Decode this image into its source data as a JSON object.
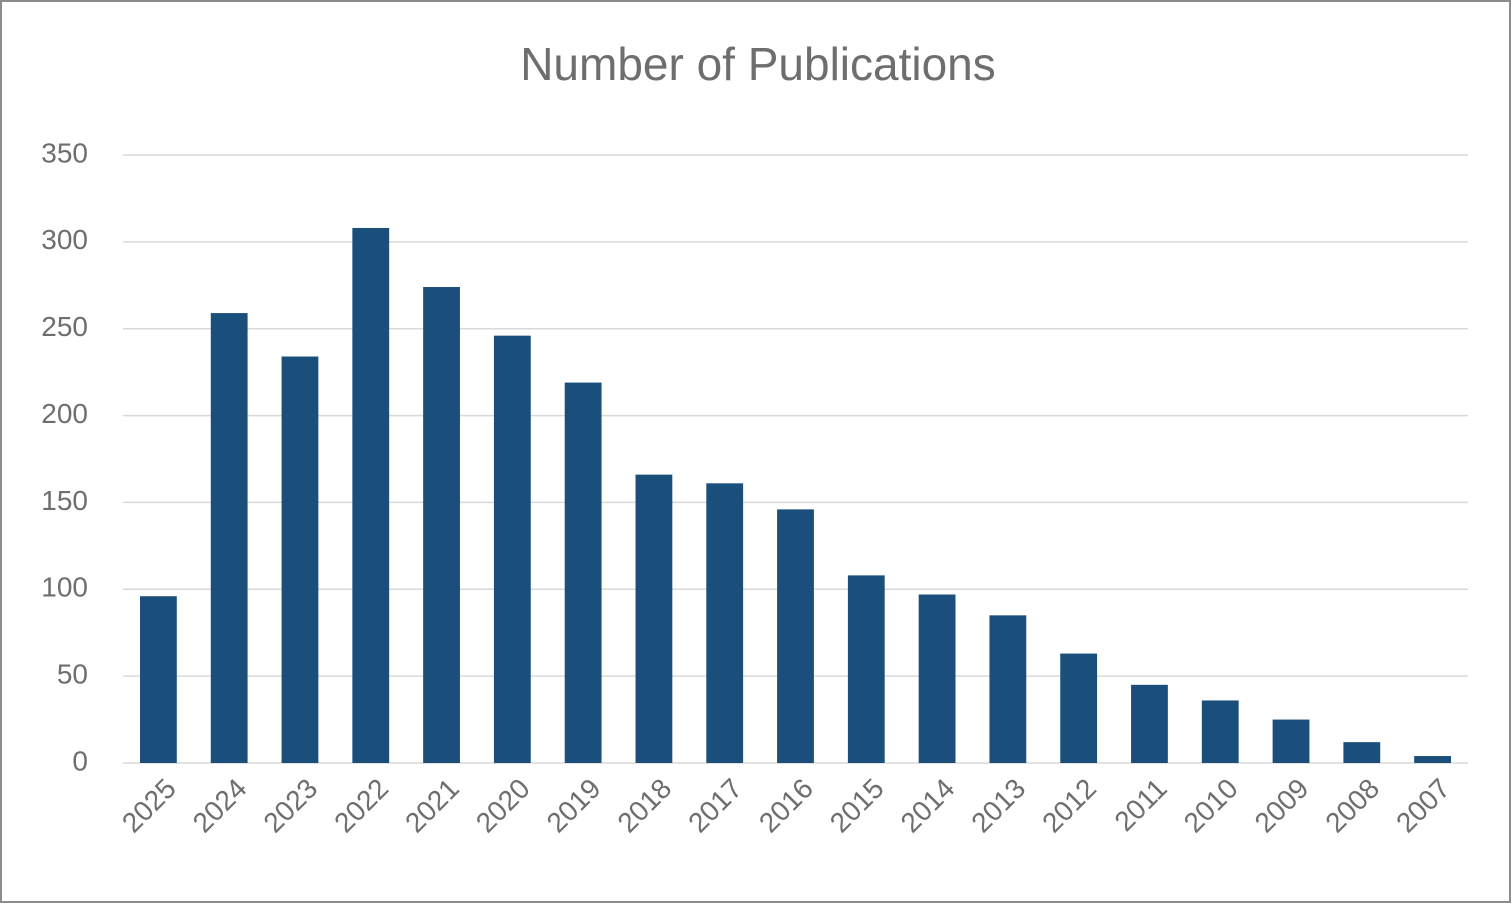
{
  "chart_data": {
    "type": "bar",
    "title": "Number of Publications",
    "categories": [
      "2025",
      "2024",
      "2023",
      "2022",
      "2021",
      "2020",
      "2019",
      "2018",
      "2017",
      "2016",
      "2015",
      "2014",
      "2013",
      "2012",
      "2011",
      "2010",
      "2009",
      "2008",
      "2007"
    ],
    "values": [
      96,
      259,
      234,
      308,
      274,
      246,
      219,
      166,
      161,
      146,
      108,
      97,
      85,
      63,
      45,
      36,
      25,
      12,
      4
    ],
    "color": "#1a4f7c",
    "ylim": [
      0,
      350
    ],
    "yticks": [
      0,
      50,
      100,
      150,
      200,
      250,
      300,
      350
    ],
    "grid": true
  }
}
